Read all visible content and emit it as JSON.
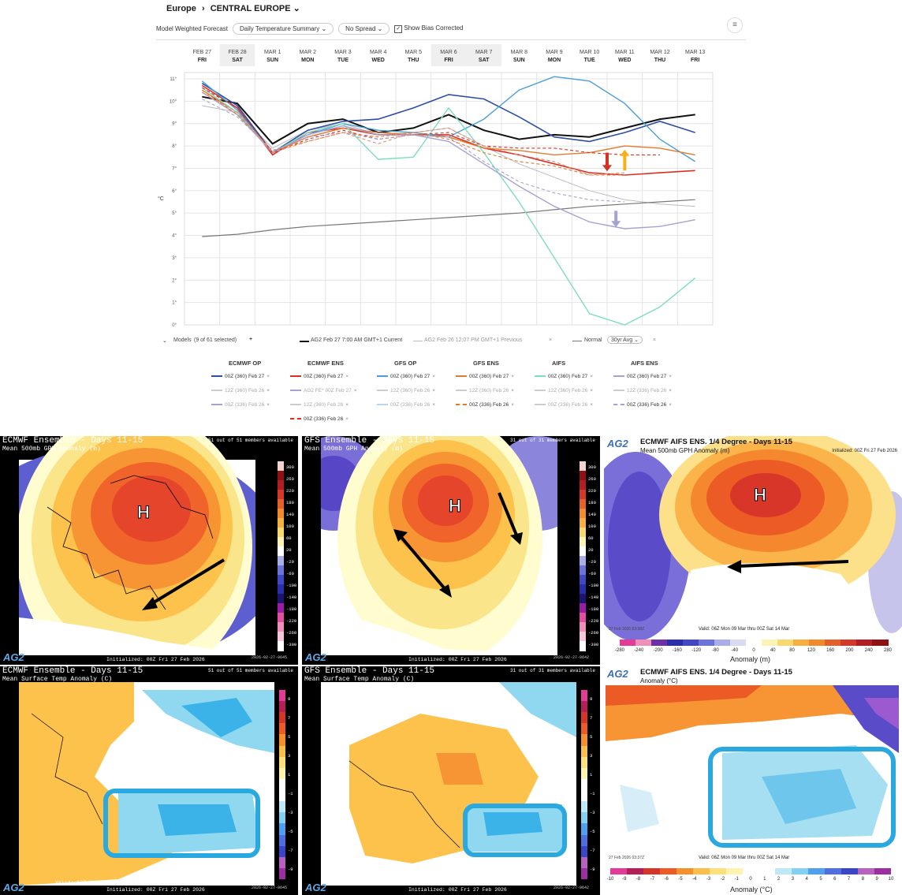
{
  "header": {
    "region": "Europe",
    "area": "CENTRAL EUROPE",
    "chevron": "⌄",
    "menu_icon": "≡"
  },
  "toolbar": {
    "label": "Model Weighted Forecast",
    "summary": "Daily Temperature Summary",
    "spread": "No Spread",
    "bias_label": "Show Bias Corrected",
    "bias_checked": "✓"
  },
  "chart_data": {
    "type": "line",
    "ylabel": "°C",
    "ylim": [
      0,
      11
    ],
    "yticks": [
      "0°",
      "1°",
      "2°",
      "3°",
      "4°",
      "5°",
      "6°",
      "7°",
      "8°",
      "9°",
      "10°",
      "11°"
    ],
    "dates": [
      "FEB 27",
      "FEB 28",
      "MAR 1",
      "MAR 2",
      "MAR 3",
      "MAR 4",
      "MAR 5",
      "MAR 6",
      "MAR 7",
      "MAR 8",
      "MAR 9",
      "MAR 10",
      "MAR 11",
      "MAR 12",
      "MAR 13"
    ],
    "days": [
      "FRI",
      "SAT",
      "SUN",
      "MON",
      "TUE",
      "WED",
      "THU",
      "FRI",
      "SAT",
      "SUN",
      "MON",
      "TUE",
      "WED",
      "THU",
      "FRI"
    ],
    "series": [
      {
        "name": "AG2 Feb 27 7:00 AM GMT+1 Current",
        "color": "#111111",
        "dash": "",
        "width": 2,
        "values": [
          10.2,
          9.9,
          8.1,
          9.0,
          9.2,
          8.6,
          8.8,
          9.4,
          8.7,
          8.3,
          8.5,
          8.4,
          8.8,
          9.2,
          9.4
        ]
      },
      {
        "name": "AG2 Feb 26 12:07 PM GMT+1 Previous",
        "color": "#bbbbbb",
        "dash": "",
        "width": 1,
        "values": [
          9.8,
          9.5,
          7.9,
          8.7,
          9.0,
          8.5,
          8.6,
          8.8,
          8.0,
          7.2,
          6.6,
          6.0,
          5.6,
          5.4,
          5.3
        ]
      },
      {
        "name": "Normal",
        "color": "#777777",
        "dash": "",
        "width": 1.2,
        "values": [
          3.95,
          4.05,
          4.25,
          4.4,
          4.5,
          4.6,
          4.7,
          4.8,
          4.9,
          5.0,
          5.15,
          5.3,
          5.4,
          5.5,
          5.6
        ]
      },
      {
        "name": "ECMWF OP 00Z (360) Feb 27",
        "color": "#2c4fa3",
        "dash": "",
        "width": 1.6,
        "values": [
          10.8,
          9.8,
          7.7,
          8.7,
          9.1,
          9.2,
          9.7,
          10.3,
          10.1,
          9.3,
          8.4,
          8.2,
          8.6,
          9.1,
          8.6
        ]
      },
      {
        "name": "ECMWF ENS 00Z (360) Feb 27",
        "color": "#d93025",
        "dash": "",
        "width": 1.6,
        "values": [
          10.7,
          9.7,
          7.6,
          8.6,
          8.8,
          8.5,
          8.5,
          8.5,
          7.9,
          7.6,
          7.2,
          6.8,
          6.7,
          6.8,
          6.9
        ]
      },
      {
        "name": "GFS OP 00Z (360) Feb 27",
        "color": "#4a9fd8",
        "dash": "",
        "width": 1.4,
        "values": [
          10.9,
          9.6,
          7.7,
          8.5,
          9.0,
          8.7,
          8.6,
          8.4,
          9.2,
          10.5,
          11.1,
          10.9,
          9.9,
          8.3,
          7.3
        ]
      },
      {
        "name": "GFS ENS 00Z (360) Feb 27",
        "color": "#e07b2e",
        "dash": "",
        "width": 1.4,
        "values": [
          10.5,
          9.5,
          7.7,
          8.4,
          8.8,
          8.6,
          8.5,
          8.4,
          7.9,
          7.8,
          7.6,
          7.7,
          8.0,
          7.9,
          7.6
        ]
      },
      {
        "name": "AIFS 00Z (360) Feb 27",
        "color": "#7fdcc4",
        "dash": "",
        "width": 1.4,
        "values": [
          10.6,
          9.5,
          7.7,
          8.6,
          9.0,
          7.4,
          7.5,
          9.7,
          7.7,
          5.5,
          3.0,
          0.5,
          0.0,
          0.8,
          2.1
        ]
      },
      {
        "name": "AIFS ENS 00Z (360) Feb 27",
        "color": "#a7a2d4",
        "dash": "",
        "width": 1.4,
        "values": [
          10.4,
          9.4,
          7.7,
          8.5,
          8.9,
          8.5,
          8.5,
          8.2,
          7.2,
          6.2,
          5.3,
          4.6,
          4.3,
          4.4,
          4.7
        ]
      },
      {
        "name": "ECMWF ENS 00Z (336) Feb 26",
        "color": "#d93025",
        "dash": "4,3",
        "width": 1.1,
        "values": [
          10.6,
          9.7,
          7.7,
          8.3,
          8.7,
          8.3,
          8.5,
          8.6,
          8.0,
          7.9,
          7.9,
          7.7,
          7.6,
          7.6,
          null
        ]
      },
      {
        "name": "GFS ENS 00Z (336) Feb 26",
        "color": "#e07b2e",
        "dash": "4,3",
        "width": 1.1,
        "values": [
          10.5,
          9.4,
          7.8,
          8.2,
          8.6,
          8.4,
          8.6,
          8.3,
          7.7,
          7.3,
          7.1,
          6.7,
          6.7,
          null,
          null
        ]
      },
      {
        "name": "AIFS ENS 00Z (336) Feb 26",
        "color": "#a7a2d4",
        "dash": "4,3",
        "width": 1.1,
        "values": [
          10.1,
          9.3,
          7.8,
          8.4,
          8.6,
          8.3,
          8.5,
          8.4,
          7.3,
          6.4,
          5.9,
          5.6,
          5.5,
          null,
          null
        ]
      },
      {
        "name": "ECMWF ENS 00Z Feb 26 alt",
        "color": "#e88a6c",
        "dash": "4,3",
        "width": 1.1,
        "values": [
          10.4,
          9.5,
          7.7,
          8.2,
          8.6,
          8.1,
          8.6,
          8.8,
          8.0,
          7.6,
          7.3,
          6.7,
          6.8,
          null,
          null
        ]
      }
    ],
    "arrows": [
      {
        "color": "#d93025",
        "dir": "down",
        "x_index": 11.5,
        "y_from": 7.7,
        "y_to": 6.9
      },
      {
        "color": "#f5b11b",
        "dir": "up",
        "x_index": 12.0,
        "y_from": 6.9,
        "y_to": 7.8
      },
      {
        "color": "#a7a2d4",
        "dir": "down",
        "x_index": 11.75,
        "y_from": 5.1,
        "y_to": 4.4
      }
    ]
  },
  "legend": {
    "models_label": "Models",
    "models_count": "(9 of 61 selected)",
    "add": "+",
    "current": "AG2 Feb 27 7:00 AM GMT+1 Current",
    "previous": "AG2 Feb 26 12:07 PM GMT+1 Previous",
    "normal": "Normal",
    "normal_select": "30yr Avg",
    "remove": "×"
  },
  "model_groups": [
    {
      "head": "ECMWF OP",
      "items": [
        {
          "label": "00Z (360) Feb 27",
          "color": "#2c4fa3",
          "active": true
        },
        {
          "label": "12Z (360) Feb 26",
          "color": "#ccc",
          "active": false
        },
        {
          "label": "00Z (336) Feb 26",
          "color": "#a7a2d4",
          "active": false
        }
      ]
    },
    {
      "head": "ECMWF ENS",
      "items": [
        {
          "label": "00Z (360) Feb 27",
          "color": "#d93025",
          "active": true
        },
        {
          "label": "AG2 FE* 00Z Feb 27",
          "color": "#a7a2d4",
          "active": false
        },
        {
          "label": "12Z (360) Feb 26",
          "color": "#ccc",
          "active": false
        },
        {
          "label": "00Z (336) Feb 26",
          "color": "#d93025",
          "active": true
        }
      ]
    },
    {
      "head": "GFS OP",
      "items": [
        {
          "label": "00Z (360) Feb 27",
          "color": "#4a9fd8",
          "active": true
        },
        {
          "label": "12Z (360) Feb 26",
          "color": "#ccc",
          "active": false
        },
        {
          "label": "00Z (336) Feb 26",
          "color": "#b6d4ee",
          "active": false
        }
      ]
    },
    {
      "head": "GFS ENS",
      "items": [
        {
          "label": "00Z (360) Feb 27",
          "color": "#e07b2e",
          "active": true
        },
        {
          "label": "12Z (360) Feb 26",
          "color": "#ccc",
          "active": false
        },
        {
          "label": "00Z (336) Feb 26",
          "color": "#e07b2e",
          "active": true
        }
      ]
    },
    {
      "head": "AIFS",
      "items": [
        {
          "label": "00Z (360) Feb 27",
          "color": "#7fdcc4",
          "active": true
        },
        {
          "label": "12Z (360) Feb 26",
          "color": "#ccc",
          "active": false
        },
        {
          "label": "00Z (336) Feb 26",
          "color": "#ccc",
          "active": false
        }
      ]
    },
    {
      "head": "AIFS ENS",
      "items": [
        {
          "label": "00Z (360) Feb 27",
          "color": "#a7a2d4",
          "active": true
        },
        {
          "label": "12Z (336) Feb 26",
          "color": "#ccc",
          "active": false
        },
        {
          "label": "00Z (336) Feb 26",
          "color": "#a7a2d4",
          "active": true
        }
      ]
    }
  ],
  "maps": {
    "ecmwf_gph": {
      "title": "ECMWF Ensemble - Days 11-15",
      "subtitle": "Mean 500mb GPH Anomaly (m)",
      "members": "51 out of 51 members available",
      "valid": "Valid: 12Z Mon 09 Mar 2026 thru 00Z Sat 14 Mar 2026",
      "init": "Initialized: 00Z Fri 27 Feb 2026",
      "stamp": "2026-02-27-0645",
      "logo": "AG2",
      "high": "H",
      "cbar": [
        "300",
        "260",
        "220",
        "180",
        "140",
        "100",
        "60",
        "20",
        "-20",
        "-60",
        "-100",
        "-140",
        "-180",
        "-220",
        "-260",
        "-300"
      ]
    },
    "gfs_gph": {
      "title": "GFS Ensemble - Days 11-15",
      "subtitle": "Mean 500mb GPH Anomaly (m)",
      "members": "31 out of 31 members available",
      "valid": "Valid: 12Z Mon 09 Mar 2026 thru 00Z Sat 14 Mar 2026",
      "init": "Initialized: 00Z Fri 27 Feb 2026",
      "stamp": "2026-02-27-0642",
      "logo": "AG2",
      "high": "H",
      "cbar": [
        "300",
        "260",
        "220",
        "180",
        "140",
        "100",
        "60",
        "20",
        "-20",
        "-60",
        "-100",
        "-140",
        "-180",
        "-220",
        "-260",
        "-300"
      ]
    },
    "aifs_gph": {
      "logo": "AG2",
      "title": "ECMWF AIFS ENS. 1/4 Degree - Days 11-15",
      "subtitle": "Mean 500mb GPH Anomaly (m)",
      "init": "Initialized: 00Z Fri 27 Feb 2026",
      "valid": "Valid: 06Z Mon 09 Mar thru 00Z Sat 14 Mar",
      "stamp": "27 Feb 2026 03:38Z",
      "high": "H",
      "cbar_title": "Anomaly (m)",
      "cbar": [
        "-280",
        "-240",
        "-200",
        "-160",
        "-120",
        "-80",
        "-40",
        "0",
        "40",
        "80",
        "120",
        "160",
        "200",
        "240",
        "280"
      ]
    },
    "ecmwf_t": {
      "title": "ECMWF Ensemble - Days 11-15",
      "subtitle": "Mean Surface Temp Anomaly (C)",
      "members": "51 out of 51 members available",
      "valid": "Valid: 12Z Mon 09 Mar 2026 thru 00Z Sat 14 Mar 2026",
      "init": "Initialized: 00Z Fri 27 Feb 2026",
      "stamp": "2026-02-27-0645",
      "logo": "AG2",
      "cbar": [
        "9",
        "7",
        "5",
        "3",
        "1",
        "-1",
        "-3",
        "-5",
        "-7",
        "-9"
      ]
    },
    "gfs_t": {
      "title": "GFS Ensemble - Days 11-15",
      "subtitle": "Mean Surface Temp Anomaly (C)",
      "members": "31 out of 31 members available",
      "valid": "Valid: 12Z Mon 09 Mar 2026 thru 00Z Sat 14 Mar 2026",
      "init": "Initialized: 00Z Fri 27 Feb 2026",
      "stamp": "2026-02-27-0642",
      "logo": "AG2",
      "cbar": [
        "9",
        "7",
        "5",
        "3",
        "1",
        "-1",
        "-3",
        "-5",
        "-7",
        "-9"
      ]
    },
    "aifs_t": {
      "logo": "AG2",
      "title": "ECMWF AIFS ENS. 1/4 Degree - Days 11-15",
      "subtitle": "Anomaly (°C)",
      "valid": "Valid: 06Z Mon 09 Mar thru 00Z Sat 14 Mar",
      "stamp": "27 Feb 2026 03:37Z",
      "cbar_title": "Anomaly (°C)",
      "cbar": [
        "-10",
        "-9",
        "-8",
        "-7",
        "-6",
        "-5",
        "-4",
        "-3",
        "-2",
        "-1",
        "0",
        "1",
        "2",
        "3",
        "4",
        "5",
        "6",
        "7",
        "8",
        "9",
        "10"
      ]
    }
  }
}
